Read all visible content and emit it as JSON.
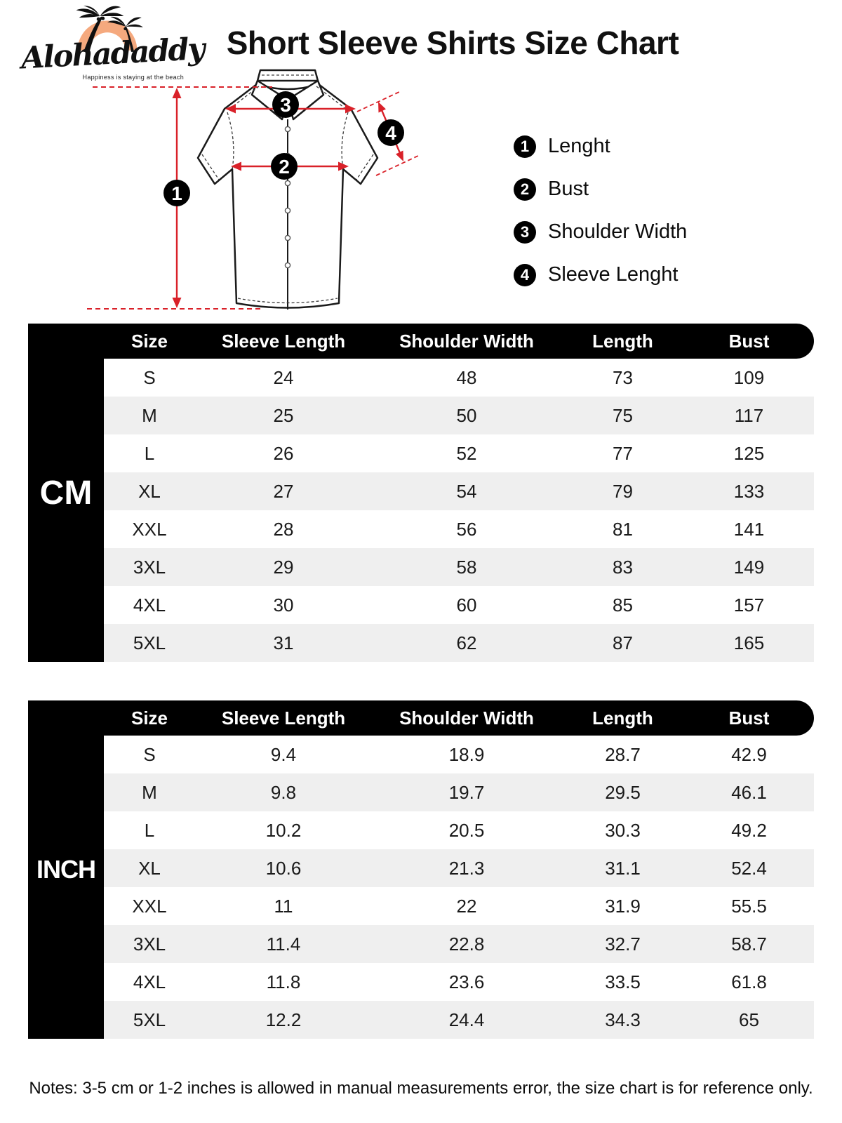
{
  "logo": {
    "brand": "Alohadaddy",
    "tagline": "Happiness is staying at the beach"
  },
  "title": "Short Sleeve Shirts Size Chart",
  "colors": {
    "accent_red": "#d92129",
    "logo_orange": "#f5a97e",
    "stripe_gray": "#efefef",
    "header_black": "#000000"
  },
  "diagram": {
    "markers": [
      {
        "num": "1",
        "label": "Lenght"
      },
      {
        "num": "2",
        "label": "Bust"
      },
      {
        "num": "3",
        "label": "Shoulder Width"
      },
      {
        "num": "4",
        "label": "Sleeve Lenght"
      }
    ]
  },
  "tables": [
    {
      "unit": "CM",
      "headers": [
        "Size",
        "Sleeve Length",
        "Shoulder Width",
        "Length",
        "Bust"
      ],
      "rows": [
        [
          "S",
          "24",
          "48",
          "73",
          "109"
        ],
        [
          "M",
          "25",
          "50",
          "75",
          "117"
        ],
        [
          "L",
          "26",
          "52",
          "77",
          "125"
        ],
        [
          "XL",
          "27",
          "54",
          "79",
          "133"
        ],
        [
          "XXL",
          "28",
          "56",
          "81",
          "141"
        ],
        [
          "3XL",
          "29",
          "58",
          "83",
          "149"
        ],
        [
          "4XL",
          "30",
          "60",
          "85",
          "157"
        ],
        [
          "5XL",
          "31",
          "62",
          "87",
          "165"
        ]
      ]
    },
    {
      "unit": "INCH",
      "headers": [
        "Size",
        "Sleeve Length",
        "Shoulder Width",
        "Length",
        "Bust"
      ],
      "rows": [
        [
          "S",
          "9.4",
          "18.9",
          "28.7",
          "42.9"
        ],
        [
          "M",
          "9.8",
          "19.7",
          "29.5",
          "46.1"
        ],
        [
          "L",
          "10.2",
          "20.5",
          "30.3",
          "49.2"
        ],
        [
          "XL",
          "10.6",
          "21.3",
          "31.1",
          "52.4"
        ],
        [
          "XXL",
          "11",
          "22",
          "31.9",
          "55.5"
        ],
        [
          "3XL",
          "11.4",
          "22.8",
          "32.7",
          "58.7"
        ],
        [
          "4XL",
          "11.8",
          "23.6",
          "33.5",
          "61.8"
        ],
        [
          "5XL",
          "12.2",
          "24.4",
          "34.3",
          "65"
        ]
      ]
    }
  ],
  "notes": "Notes: 3-5 cm or 1-2 inches is allowed in manual measurements error, the size chart is for reference only."
}
